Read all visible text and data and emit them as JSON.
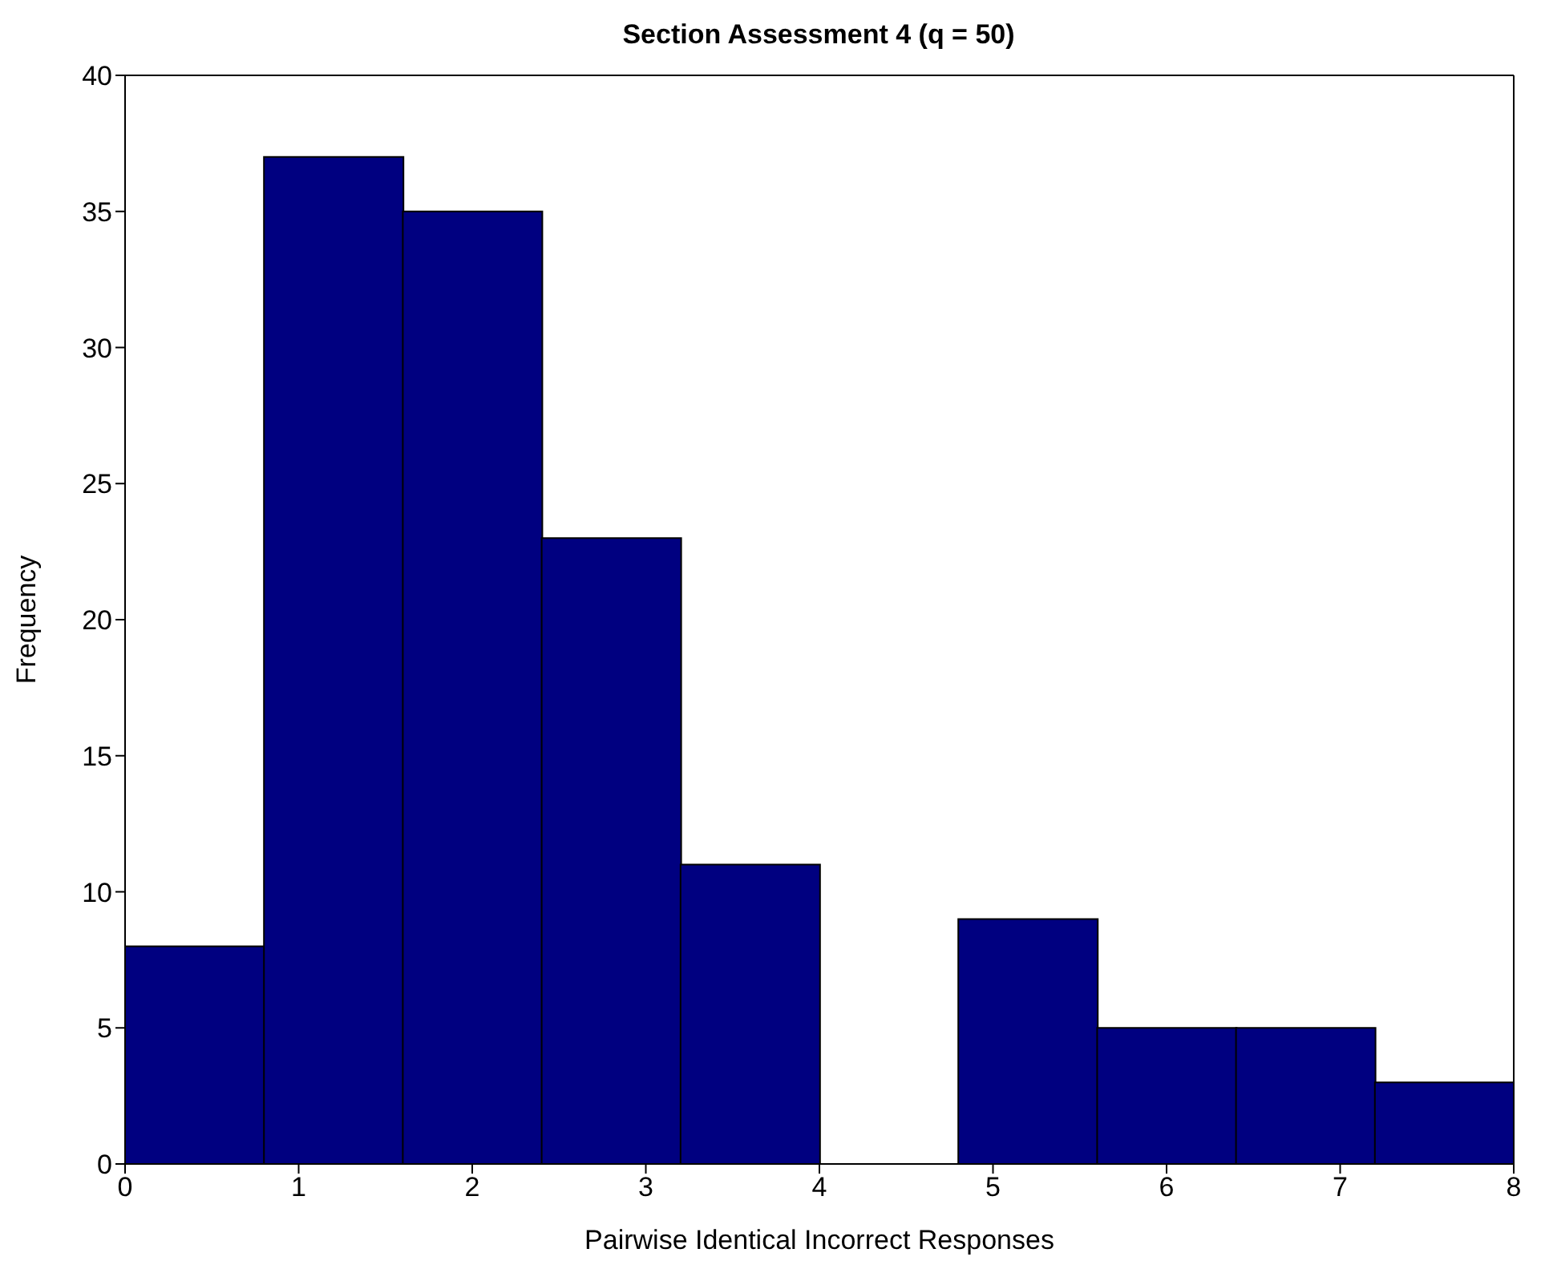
{
  "chart_data": {
    "type": "histogram",
    "title": "Section Assessment 4 (q = 50)",
    "xlabel": "Pairwise Identical Incorrect Responses",
    "ylabel": "Frequency",
    "bins": [
      0,
      0.8,
      1.6,
      2.4,
      3.2,
      4,
      4.8,
      5.6,
      6.4,
      7.2,
      8
    ],
    "values": [
      8,
      37,
      35,
      23,
      11,
      0,
      9,
      5,
      5,
      3
    ],
    "color": "#000080",
    "xlim": [
      0,
      8
    ],
    "xticks": [
      0,
      1,
      2,
      3,
      4,
      5,
      6,
      7,
      8
    ],
    "ylim": [
      0,
      40
    ],
    "yticks": [
      0,
      5,
      10,
      15,
      20,
      25,
      30,
      35,
      40
    ],
    "grid": false,
    "legend": false
  }
}
